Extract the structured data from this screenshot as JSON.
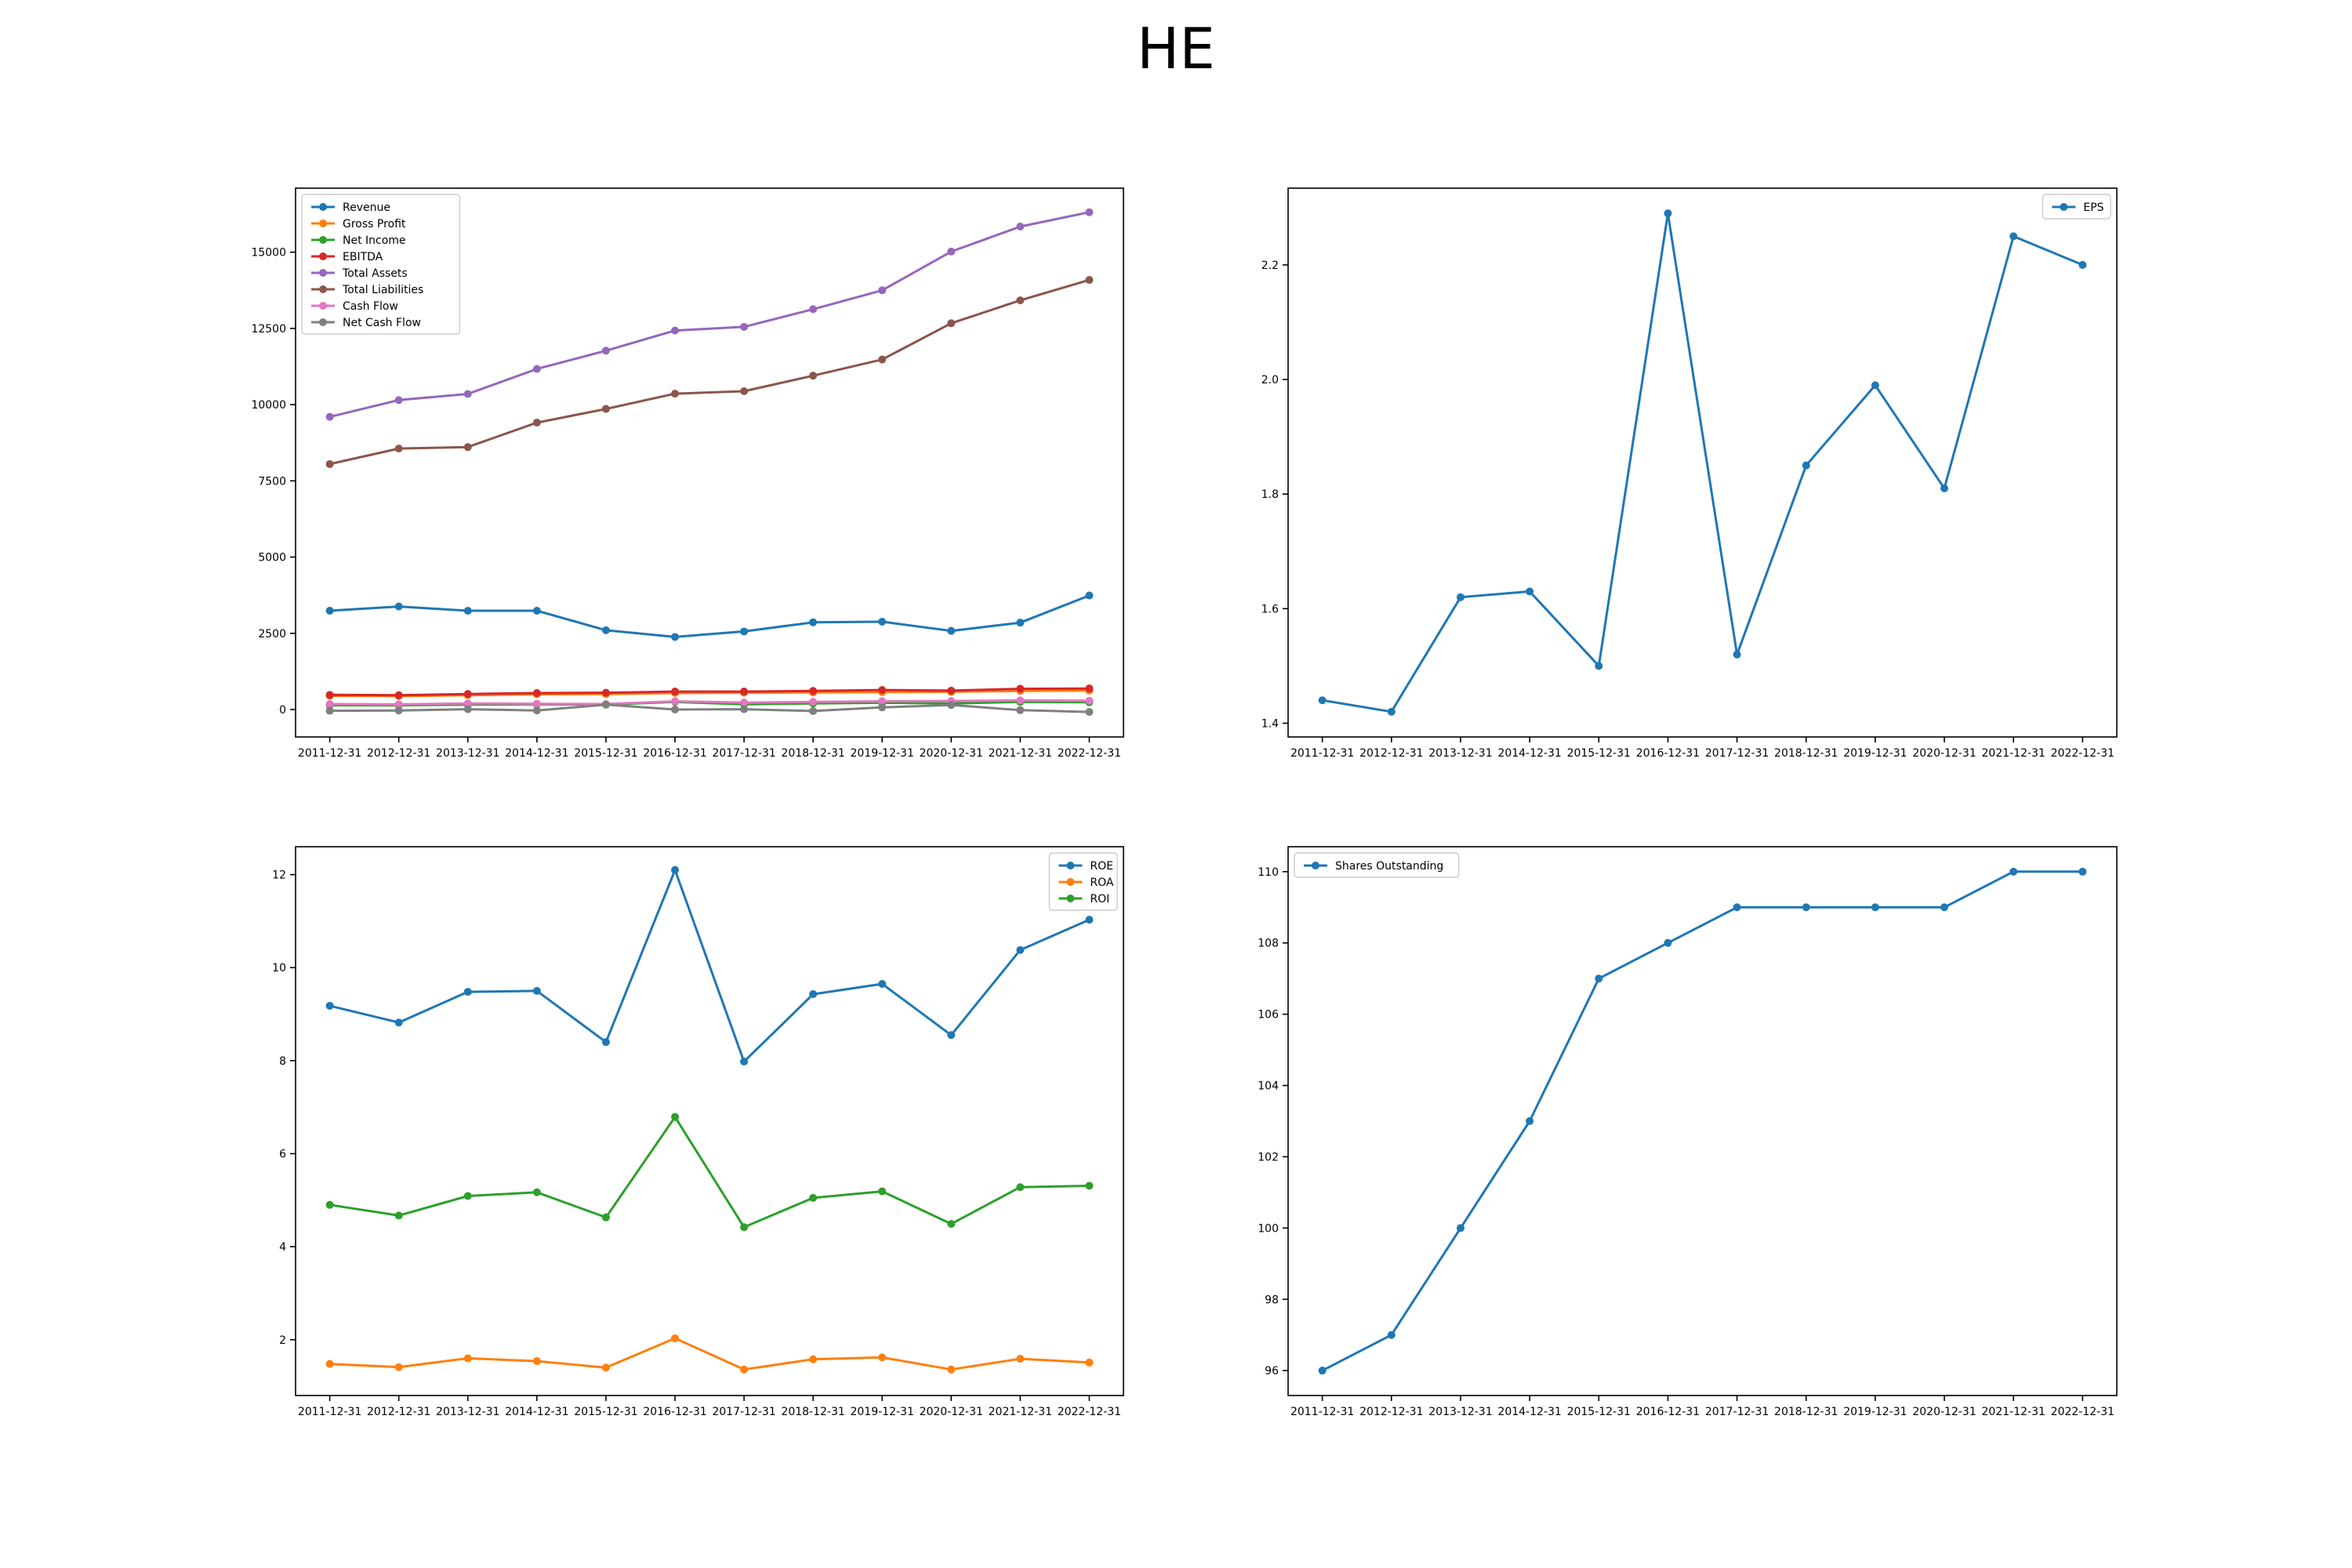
{
  "figure": {
    "title": "HE"
  },
  "chart_data": [
    {
      "type": "line",
      "x": [
        "2011-12-31",
        "2012-12-31",
        "2013-12-31",
        "2014-12-31",
        "2015-12-31",
        "2016-12-31",
        "2017-12-31",
        "2018-12-31",
        "2019-12-31",
        "2020-12-31",
        "2021-12-31",
        "2022-12-31"
      ],
      "ylim": [
        -900,
        17100
      ],
      "yticks": [
        0,
        2500,
        5000,
        7500,
        10000,
        12500,
        15000
      ],
      "legend": "top-left",
      "series": [
        {
          "name": "Revenue",
          "color": "#1f77b4",
          "values": [
            3240,
            3380,
            3240,
            3240,
            2600,
            2380,
            2560,
            2860,
            2880,
            2580,
            2850,
            3740
          ]
        },
        {
          "name": "Gross Profit",
          "color": "#ff7f0e",
          "values": [
            450,
            440,
            470,
            500,
            510,
            540,
            550,
            560,
            570,
            580,
            610,
            620
          ]
        },
        {
          "name": "Net Income",
          "color": "#2ca02c",
          "values": [
            140,
            140,
            160,
            170,
            160,
            250,
            170,
            200,
            220,
            200,
            250,
            240
          ]
        },
        {
          "name": "EBITDA",
          "color": "#d62728",
          "values": [
            480,
            470,
            510,
            540,
            550,
            590,
            590,
            610,
            640,
            620,
            680,
            690
          ]
        },
        {
          "name": "Total Assets",
          "color": "#9467bd",
          "values": [
            9600,
            10150,
            10350,
            11170,
            11770,
            12430,
            12550,
            13130,
            13750,
            15020,
            15840,
            16310
          ]
        },
        {
          "name": "Total Liabilities",
          "color": "#8c564b",
          "values": [
            8050,
            8560,
            8610,
            9410,
            9860,
            10360,
            10440,
            10950,
            11480,
            12670,
            13420,
            14090
          ]
        },
        {
          "name": "Cash Flow",
          "color": "#e377c2",
          "values": [
            180,
            170,
            200,
            190,
            180,
            270,
            230,
            250,
            270,
            280,
            300,
            290
          ]
        },
        {
          "name": "Net Cash Flow",
          "color": "#7f7f7f",
          "values": [
            -40,
            -30,
            10,
            -30,
            160,
            0,
            10,
            -50,
            70,
            150,
            -20,
            -80
          ]
        }
      ]
    },
    {
      "type": "line",
      "x": [
        "2011-12-31",
        "2012-12-31",
        "2013-12-31",
        "2014-12-31",
        "2015-12-31",
        "2016-12-31",
        "2017-12-31",
        "2018-12-31",
        "2019-12-31",
        "2020-12-31",
        "2021-12-31",
        "2022-12-31"
      ],
      "ylim": [
        1.376,
        2.334
      ],
      "yticks": [
        1.4,
        1.6,
        1.8,
        2.0,
        2.2
      ],
      "legend": "top-right",
      "series": [
        {
          "name": "EPS",
          "color": "#1f77b4",
          "values": [
            1.44,
            1.42,
            1.62,
            1.63,
            1.5,
            2.29,
            1.52,
            1.85,
            1.99,
            1.81,
            2.25,
            2.2
          ]
        }
      ]
    },
    {
      "type": "line",
      "x": [
        "2011-12-31",
        "2012-12-31",
        "2013-12-31",
        "2014-12-31",
        "2015-12-31",
        "2016-12-31",
        "2017-12-31",
        "2018-12-31",
        "2019-12-31",
        "2020-12-31",
        "2021-12-31",
        "2022-12-31"
      ],
      "ylim": [
        0.8,
        12.6
      ],
      "yticks": [
        2,
        4,
        6,
        8,
        10,
        12
      ],
      "legend": "top-right",
      "series": [
        {
          "name": "ROE",
          "color": "#1f77b4",
          "values": [
            9.18,
            8.82,
            9.48,
            9.5,
            8.4,
            12.1,
            7.98,
            9.43,
            9.65,
            8.55,
            10.38,
            11.03
          ]
        },
        {
          "name": "ROA",
          "color": "#ff7f0e",
          "values": [
            1.48,
            1.41,
            1.6,
            1.54,
            1.4,
            2.03,
            1.36,
            1.58,
            1.62,
            1.36,
            1.59,
            1.51
          ]
        },
        {
          "name": "ROI",
          "color": "#2ca02c",
          "values": [
            4.9,
            4.67,
            5.09,
            5.17,
            4.63,
            6.79,
            4.42,
            5.05,
            5.19,
            4.49,
            5.28,
            5.31
          ]
        }
      ]
    },
    {
      "type": "line",
      "x": [
        "2011-12-31",
        "2012-12-31",
        "2013-12-31",
        "2014-12-31",
        "2015-12-31",
        "2016-12-31",
        "2017-12-31",
        "2018-12-31",
        "2019-12-31",
        "2020-12-31",
        "2021-12-31",
        "2022-12-31"
      ],
      "ylim": [
        95.3,
        110.7
      ],
      "yticks": [
        96,
        98,
        100,
        102,
        104,
        106,
        108,
        110
      ],
      "legend": "top-left",
      "series": [
        {
          "name": "Shares Outstanding",
          "color": "#1f77b4",
          "values": [
            96,
            97,
            100,
            103,
            107,
            108,
            109,
            109,
            109,
            109,
            110,
            110
          ]
        }
      ]
    }
  ]
}
